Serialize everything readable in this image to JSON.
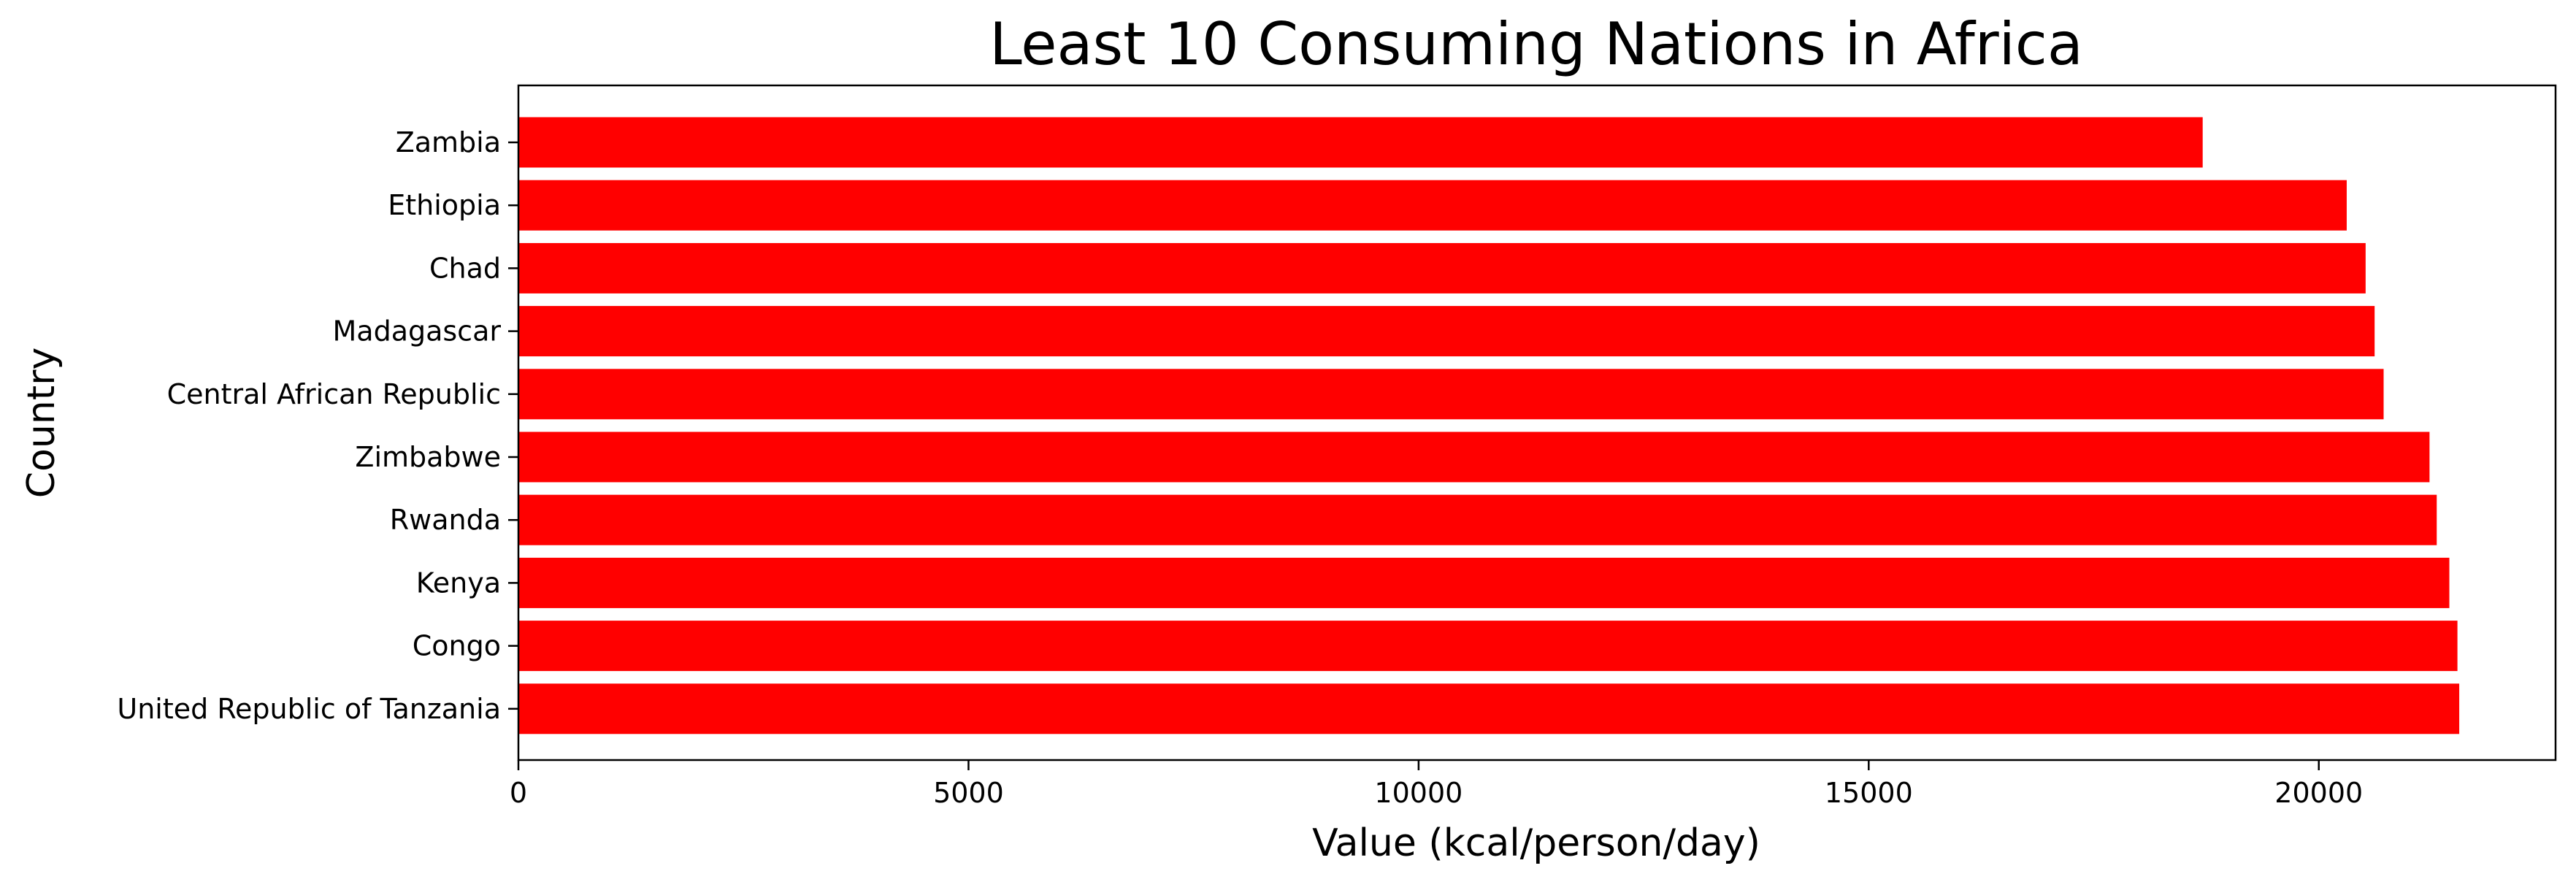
{
  "chart_data": {
    "type": "bar",
    "orientation": "horizontal",
    "title": "Least 10 Consuming Nations in Africa",
    "xlabel": "Value (kcal/person/day)",
    "ylabel": "Country",
    "categories": [
      "Zambia",
      "Ethiopia",
      "Chad",
      "Madagascar",
      "Central African Republic",
      "Zimbabwe",
      "Rwanda",
      "Kenya",
      "Congo",
      "United Republic of Tanzania"
    ],
    "values": [
      18710,
      20310,
      20520,
      20620,
      20720,
      21230,
      21310,
      21450,
      21540,
      21560
    ],
    "xlim": [
      0,
      22630
    ],
    "xticks": [
      0,
      5000,
      10000,
      15000,
      20000
    ],
    "xtick_labels": [
      "0",
      "5000",
      "10000",
      "15000",
      "20000"
    ],
    "bar_color": "#ff0000",
    "grid": false,
    "legend": "none"
  }
}
